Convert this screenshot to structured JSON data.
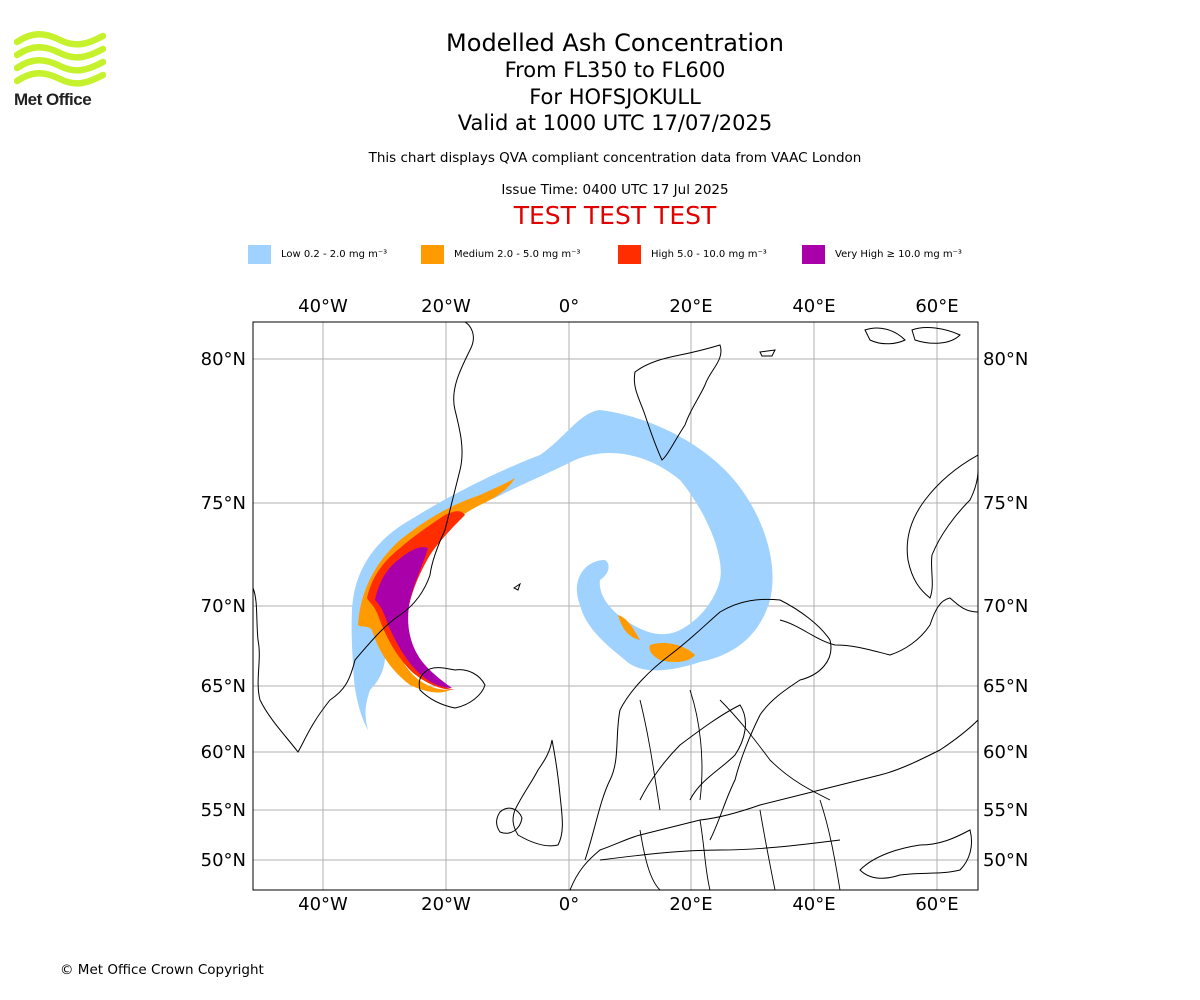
{
  "logo": {
    "text": "Met Office",
    "color": "#c6f22d"
  },
  "header": {
    "title": "Modelled Ash Concentration",
    "levels": "From FL350 to FL600",
    "volcano": "For HOFSJOKULL",
    "valid": "Valid at 1000 UTC 17/07/2025",
    "disclaimer": "This chart displays QVA compliant concentration data from VAAC London",
    "issue_time": "Issue Time: 0400 UTC 17 Jul 2025",
    "test_banner": "TEST TEST TEST"
  },
  "legend": [
    {
      "label": "Low 0.2 - 2.0 mg m⁻³",
      "color": "#a0d2ff"
    },
    {
      "label": "Medium 2.0 - 5.0 mg m⁻³",
      "color": "#ff9a00"
    },
    {
      "label": "High 5.0 - 10.0 mg m⁻³",
      "color": "#ff2d00"
    },
    {
      "label": "Very High  ≥  10.0 mg m⁻³",
      "color": "#aa00aa"
    }
  ],
  "map": {
    "lon_labels": [
      "40°W",
      "20°W",
      "0°",
      "20°E",
      "40°E",
      "60°E"
    ],
    "lat_labels": [
      "80°N",
      "75°N",
      "70°N",
      "65°N",
      "60°N",
      "55°N",
      "50°N"
    ],
    "gridline_color": "#b0b0b0"
  },
  "footer": {
    "copyright": "© Met Office Crown Copyright"
  }
}
